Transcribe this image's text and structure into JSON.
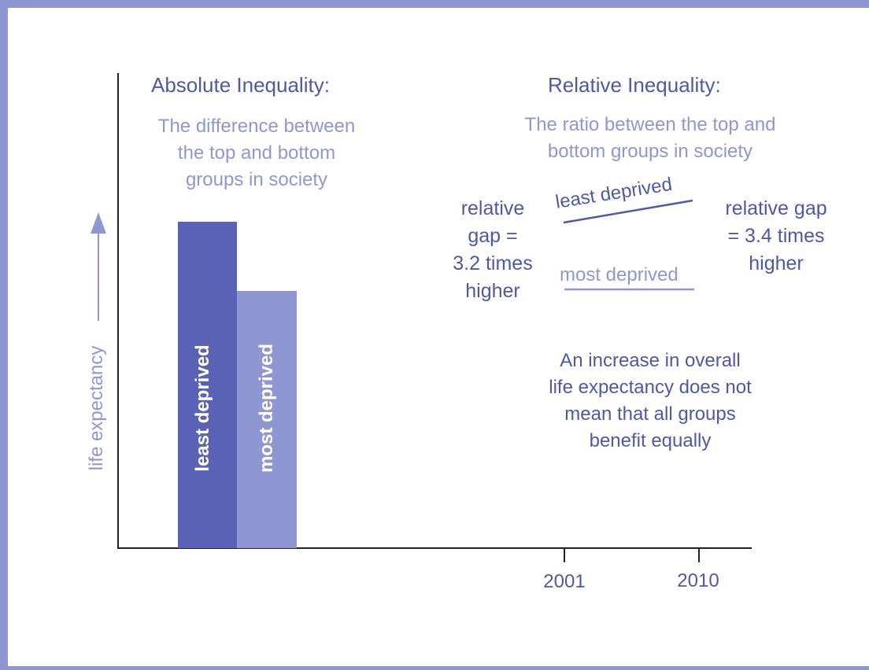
{
  "colors": {
    "dark": "#4f58a8",
    "bar_dark": "#5a62b6",
    "light": "#8f97d3",
    "frame": "#8f97d3"
  },
  "absolute": {
    "title": "Absolute Inequality:",
    "subtitle": [
      "The difference between",
      "the top and bottom",
      "groups in society"
    ]
  },
  "relative": {
    "title": "Relative Inequality:",
    "subtitle": [
      "The ratio between the top and",
      "bottom groups in society"
    ]
  },
  "axis": {
    "ylabel": "life expectancy"
  },
  "bars": [
    {
      "label": "least deprived"
    },
    {
      "label": "most deprived"
    }
  ],
  "lines": {
    "top_label": "least deprived",
    "bottom_label": "most deprived"
  },
  "gap_left": [
    "relative",
    "gap =",
    "3.2 times",
    "higher"
  ],
  "gap_right": [
    "relative gap",
    "= 3.4 times",
    "higher"
  ],
  "note": [
    "An increase in overall",
    "life expectancy does not",
    "mean that all groups",
    "benefit equally"
  ],
  "ticks": [
    "2001",
    "2010"
  ]
}
